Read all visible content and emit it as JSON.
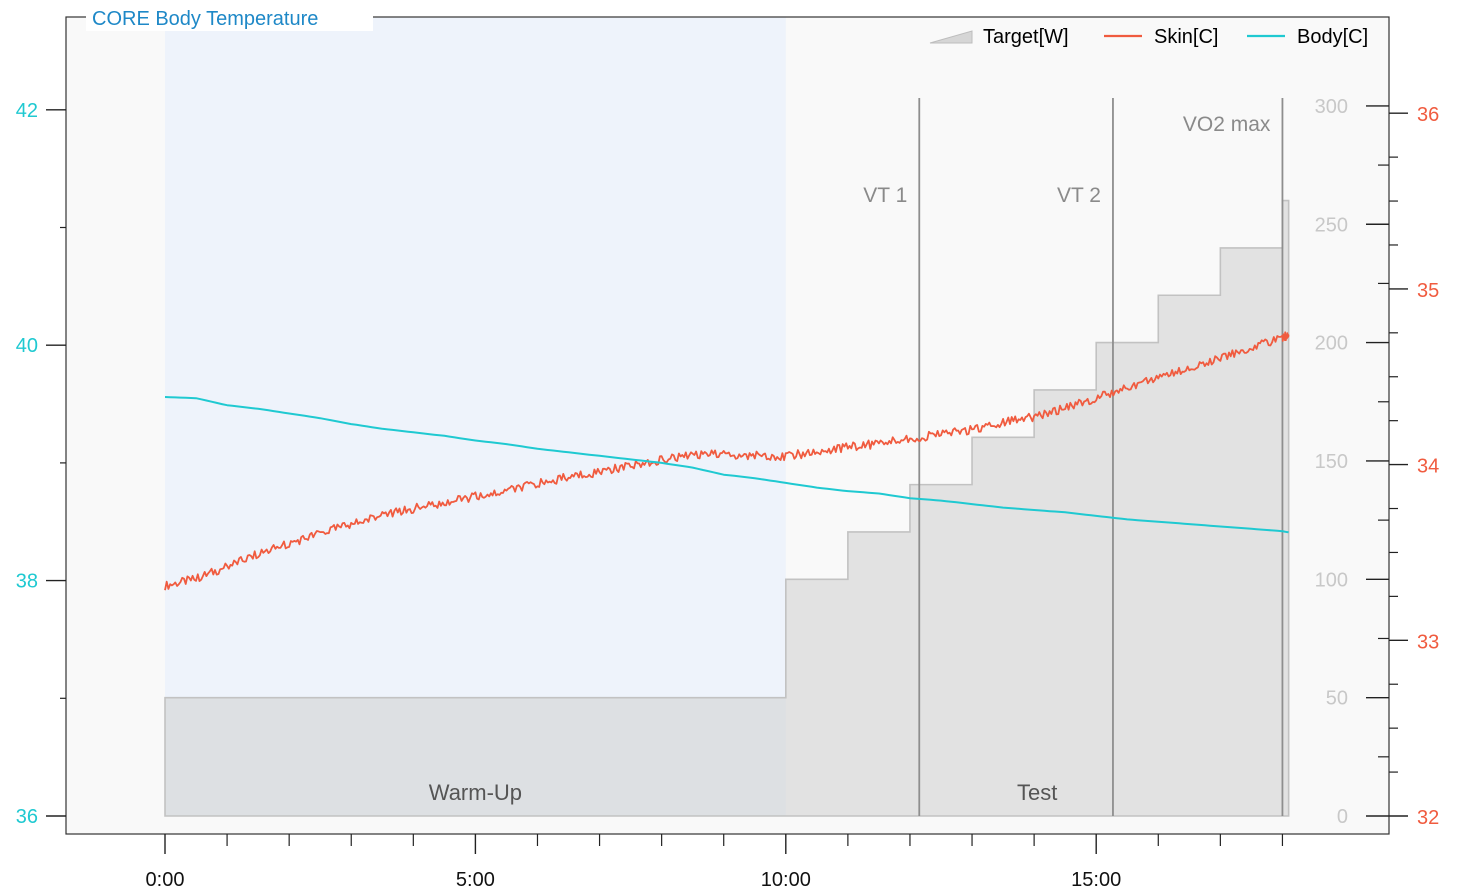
{
  "chart_data": {
    "type": "line",
    "title": "CORE Body Temperature",
    "xlim_min": [
      -1.6,
      19.6
    ],
    "x_ticks": [
      {
        "value": 0,
        "label": "0:00"
      },
      {
        "value": 5,
        "label": "5:00"
      },
      {
        "value": 10,
        "label": "10:00"
      },
      {
        "value": 15,
        "label": "15:00"
      }
    ],
    "axes": {
      "left": {
        "label": "",
        "range": [
          35.8,
          42.8
        ],
        "ticks": [
          "36",
          "38",
          "40",
          "42"
        ],
        "color": "#1fc9d1"
      },
      "power": {
        "label": "",
        "range": [
          0,
          300
        ],
        "ticks": [
          "0",
          "50",
          "100",
          "150",
          "200",
          "250",
          "300"
        ],
        "color": "#c8c8c8"
      },
      "right": {
        "label": "",
        "range": [
          32,
          36
        ],
        "ticks": [
          "32",
          "33",
          "34",
          "35",
          "36"
        ],
        "color": "#f05b3f"
      }
    },
    "legend": {
      "position": "top-right",
      "entries": [
        {
          "name": "Target[W]",
          "kind": "area",
          "color": "#d6d6d6"
        },
        {
          "name": "Skin[C]",
          "kind": "line",
          "color": "#f05b3f"
        },
        {
          "name": "Body[C]",
          "kind": "line",
          "color": "#1fc9d1"
        }
      ]
    },
    "phases": [
      {
        "label": "Warm-Up",
        "start": 0,
        "end": 10,
        "color": "#eef3fb"
      },
      {
        "label": "Test",
        "start": 10,
        "end": 18.1
      }
    ],
    "markers": [
      {
        "label": "VT 1",
        "x": 12.15
      },
      {
        "label": "VT 2",
        "x": 15.27
      },
      {
        "label": "VO2 max",
        "x": 18.0
      }
    ],
    "series": [
      {
        "name": "Target[W]",
        "axis": "power",
        "type": "step-area",
        "x": [
          0,
          9.95,
          10.0,
          11.0,
          12.0,
          13.0,
          14.0,
          15.0,
          16.0,
          17.0,
          18.0,
          18.1
        ],
        "values": [
          50,
          50,
          100,
          120,
          140,
          160,
          180,
          200,
          220,
          240,
          260,
          260
        ]
      },
      {
        "name": "Skin[C]",
        "axis": "right",
        "x": [
          0,
          0.5,
          1,
          1.5,
          2,
          2.5,
          3,
          3.5,
          4,
          4.5,
          5,
          5.5,
          6,
          6.5,
          7,
          7.5,
          8,
          8.5,
          9,
          9.5,
          10,
          10.5,
          11,
          11.5,
          12,
          12.5,
          13,
          13.5,
          14,
          14.5,
          15,
          15.5,
          16,
          16.5,
          17,
          17.5,
          18,
          18.1
        ],
        "values": [
          33.31,
          33.35,
          33.42,
          33.49,
          33.55,
          33.61,
          33.66,
          33.71,
          33.75,
          33.78,
          33.82,
          33.85,
          33.89,
          33.93,
          33.96,
          33.99,
          34.03,
          34.05,
          34.06,
          34.05,
          34.05,
          34.07,
          34.1,
          34.12,
          34.15,
          34.17,
          34.2,
          34.24,
          34.27,
          34.32,
          34.38,
          34.44,
          34.5,
          34.55,
          34.61,
          34.67,
          34.72,
          34.74
        ]
      },
      {
        "name": "Body[C]",
        "axis": "left",
        "x": [
          0,
          0.5,
          1,
          1.5,
          2,
          2.5,
          3,
          3.5,
          4,
          4.5,
          5,
          5.5,
          6,
          6.5,
          7,
          7.5,
          8,
          8.5,
          9,
          9.5,
          10,
          10.5,
          11,
          11.5,
          12,
          12.5,
          13,
          13.5,
          14,
          14.5,
          15,
          15.5,
          16,
          16.5,
          17,
          17.5,
          18,
          18.1
        ],
        "values": [
          39.56,
          39.55,
          39.49,
          39.46,
          39.42,
          39.38,
          39.33,
          39.29,
          39.26,
          39.23,
          39.19,
          39.16,
          39.12,
          39.09,
          39.06,
          39.03,
          39.0,
          38.96,
          38.9,
          38.87,
          38.83,
          38.79,
          38.76,
          38.74,
          38.7,
          38.68,
          38.65,
          38.62,
          38.6,
          38.58,
          38.55,
          38.52,
          38.5,
          38.48,
          38.46,
          38.44,
          38.42,
          38.41
        ]
      }
    ]
  }
}
